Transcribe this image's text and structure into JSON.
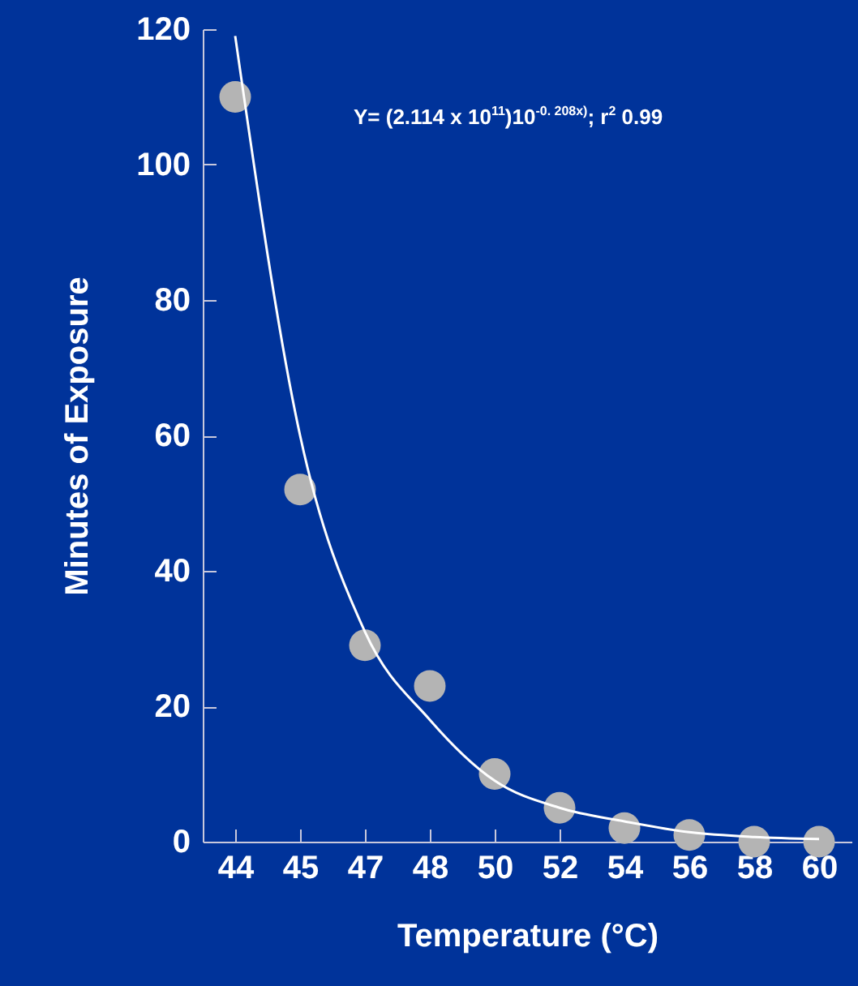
{
  "chart_data": {
    "type": "scatter",
    "categories": [
      "44",
      "45",
      "47",
      "48",
      "50",
      "52",
      "54",
      "56",
      "58",
      "60"
    ],
    "xlabel": "Temperature (°C)",
    "ylabel": "Minutes of Exposure",
    "ylim": [
      0,
      120
    ],
    "yticks": [
      0,
      20,
      40,
      60,
      80,
      100,
      120
    ],
    "grid": false,
    "marker": "circle",
    "annotations": [
      "Y= (2.114 x 10$^{11}$)10$^{-0. 208x)}$; r$^{2}$ 0.99"
    ],
    "series": [
      {
        "color": "#b4b4b4",
        "values": [
          110,
          52,
          29,
          23,
          10,
          5,
          2,
          1,
          0,
          0
        ]
      },
      {
        "type": "line",
        "color": "#ffffff",
        "marker": "none",
        "x": [
          "44",
          "45",
          "47",
          "48",
          "50",
          "52",
          "54",
          "56",
          "58",
          "60"
        ],
        "values": [
          119,
          60,
          31,
          18,
          9,
          5,
          3,
          1.4,
          0.7,
          0.4
        ]
      }
    ]
  }
}
